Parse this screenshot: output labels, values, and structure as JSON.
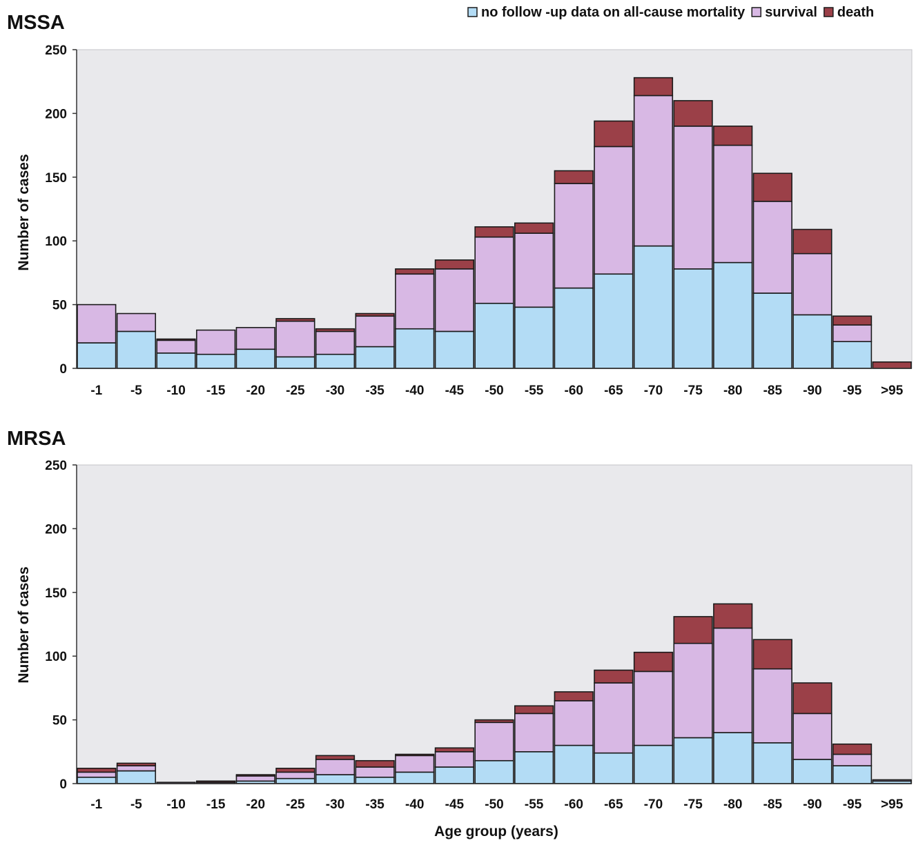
{
  "legend": {
    "items": [
      {
        "label": "no follow -up data on all-cause mortality",
        "color": "#b3dcf5"
      },
      {
        "label": "survival",
        "color": "#d8b8e4"
      },
      {
        "label": "death",
        "color": "#9b4048"
      }
    ]
  },
  "xlabel": "Age group (years)",
  "chart_data": [
    {
      "type": "bar",
      "stacked": true,
      "title": "MSSA",
      "ylabel": "Number of cases",
      "ylim": [
        0,
        250
      ],
      "yticks": [
        "0",
        "50",
        "100",
        "150",
        "200",
        "250"
      ],
      "grid": false,
      "legend_position": "top-right",
      "categories": [
        "-1",
        "-5",
        "-10",
        "-15",
        "-20",
        "-25",
        "-30",
        "-35",
        "-40",
        "-45",
        "-50",
        "-55",
        "-60",
        "-65",
        "-70",
        "-75",
        "-80",
        "-85",
        "-90",
        "-95",
        ">95"
      ],
      "series": [
        {
          "name": "no follow -up data on all-cause mortality",
          "values": [
            20,
            29,
            12,
            11,
            15,
            9,
            11,
            17,
            31,
            29,
            51,
            48,
            63,
            74,
            96,
            78,
            83,
            59,
            42,
            21,
            0
          ]
        },
        {
          "name": "survival",
          "values": [
            30,
            14,
            10,
            19,
            17,
            28,
            18,
            24,
            43,
            49,
            52,
            58,
            82,
            100,
            118,
            112,
            92,
            72,
            48,
            13,
            0
          ]
        },
        {
          "name": "death",
          "values": [
            0,
            0,
            1,
            0,
            0,
            2,
            2,
            2,
            4,
            7,
            8,
            8,
            10,
            20,
            14,
            20,
            15,
            22,
            19,
            7,
            5
          ]
        }
      ]
    },
    {
      "type": "bar",
      "stacked": true,
      "title": "MRSA",
      "ylabel": "Number of cases",
      "ylim": [
        0,
        250
      ],
      "yticks": [
        "0",
        "50",
        "100",
        "150",
        "200",
        "250"
      ],
      "grid": false,
      "legend_position": "none",
      "categories": [
        "-1",
        "-5",
        "-10",
        "-15",
        "-20",
        "-25",
        "-30",
        "-35",
        "-40",
        "-45",
        "-50",
        "-55",
        "-60",
        "-65",
        "-70",
        "-75",
        "-80",
        "-85",
        "-90",
        "-95",
        ">95"
      ],
      "series": [
        {
          "name": "no follow -up data on all-cause mortality",
          "values": [
            5,
            10,
            0,
            0,
            2,
            4,
            7,
            5,
            9,
            13,
            18,
            25,
            30,
            24,
            30,
            36,
            40,
            32,
            19,
            14,
            2
          ]
        },
        {
          "name": "survival",
          "values": [
            4,
            4,
            1,
            1,
            4,
            5,
            12,
            8,
            13,
            12,
            30,
            30,
            35,
            55,
            58,
            74,
            82,
            58,
            36,
            9,
            1
          ]
        },
        {
          "name": "death",
          "values": [
            3,
            2,
            0,
            1,
            1,
            3,
            3,
            5,
            1,
            3,
            2,
            6,
            7,
            10,
            15,
            21,
            19,
            23,
            24,
            8,
            0
          ]
        }
      ]
    }
  ]
}
